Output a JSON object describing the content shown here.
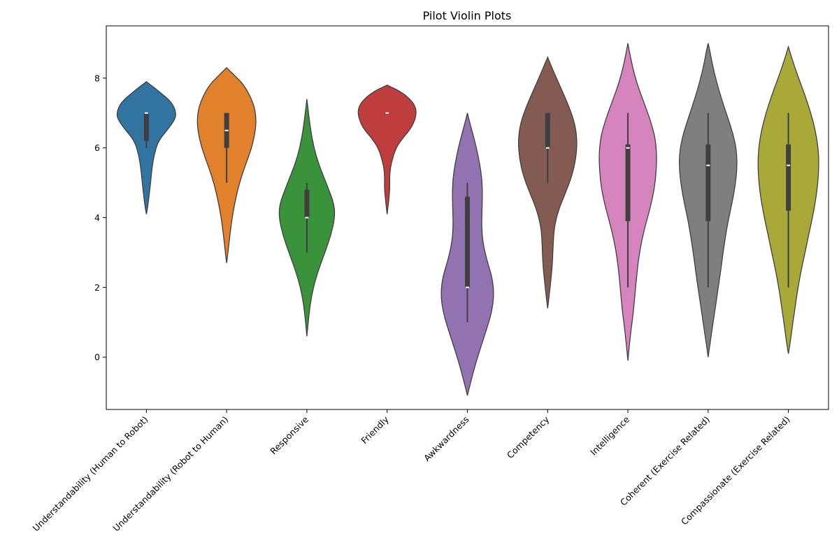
{
  "chart_data": {
    "type": "violin",
    "title": "Pilot Violin Plots",
    "xlabel": "",
    "ylabel": "",
    "ylim": [
      -1.5,
      9.5
    ],
    "y_ticks": [
      0,
      2,
      4,
      6,
      8
    ],
    "grid": false,
    "categories": [
      {
        "label": "Understandability (Human to Robot)",
        "color": "#3274a1",
        "range": [
          4.1,
          7.9
        ],
        "profile": [
          [
            4.1,
            0.0
          ],
          [
            4.3,
            0.04
          ],
          [
            4.6,
            0.08
          ],
          [
            5.0,
            0.13
          ],
          [
            5.4,
            0.17
          ],
          [
            5.8,
            0.24
          ],
          [
            6.2,
            0.37
          ],
          [
            6.5,
            0.64
          ],
          [
            6.8,
            0.88
          ],
          [
            7.0,
            0.93
          ],
          [
            7.3,
            0.8
          ],
          [
            7.6,
            0.42
          ],
          [
            7.9,
            0.0
          ]
        ],
        "box": [
          6.2,
          7.0
        ],
        "whisker": [
          6.0,
          7.0
        ],
        "median": 7.0
      },
      {
        "label": "Understandability (Robot to Human)",
        "color": "#e1812c",
        "range": [
          2.7,
          8.3
        ],
        "profile": [
          [
            2.7,
            0.0
          ],
          [
            3.0,
            0.04
          ],
          [
            3.5,
            0.1
          ],
          [
            4.0,
            0.17
          ],
          [
            4.5,
            0.27
          ],
          [
            5.0,
            0.4
          ],
          [
            5.5,
            0.58
          ],
          [
            6.0,
            0.78
          ],
          [
            6.5,
            0.9
          ],
          [
            6.9,
            0.92
          ],
          [
            7.3,
            0.83
          ],
          [
            7.8,
            0.55
          ],
          [
            8.1,
            0.22
          ],
          [
            8.3,
            0.0
          ]
        ],
        "box": [
          6.0,
          7.0
        ],
        "whisker": [
          5.0,
          7.0
        ],
        "median": 6.5
      },
      {
        "label": "Responsive",
        "color": "#3a923a",
        "range": [
          0.6,
          7.4
        ],
        "profile": [
          [
            0.6,
            0.0
          ],
          [
            1.0,
            0.04
          ],
          [
            1.5,
            0.1
          ],
          [
            2.0,
            0.2
          ],
          [
            2.5,
            0.36
          ],
          [
            3.0,
            0.56
          ],
          [
            3.5,
            0.75
          ],
          [
            4.0,
            0.87
          ],
          [
            4.4,
            0.85
          ],
          [
            5.0,
            0.6
          ],
          [
            5.5,
            0.38
          ],
          [
            6.0,
            0.22
          ],
          [
            6.5,
            0.12
          ],
          [
            7.0,
            0.05
          ],
          [
            7.4,
            0.0
          ]
        ],
        "box": [
          4.0,
          4.8
        ],
        "whisker": [
          3.0,
          5.0
        ],
        "median": 4.0
      },
      {
        "label": "Friendly",
        "color": "#c03d3e",
        "range": [
          4.1,
          7.8
        ],
        "profile": [
          [
            4.1,
            0.0
          ],
          [
            4.4,
            0.04
          ],
          [
            4.8,
            0.08
          ],
          [
            5.0,
            0.08
          ],
          [
            5.3,
            0.08
          ],
          [
            5.6,
            0.14
          ],
          [
            6.0,
            0.27
          ],
          [
            6.3,
            0.5
          ],
          [
            6.6,
            0.78
          ],
          [
            7.0,
            0.93
          ],
          [
            7.3,
            0.83
          ],
          [
            7.6,
            0.46
          ],
          [
            7.8,
            0.0
          ]
        ],
        "box": [
          7.0,
          7.0
        ],
        "whisker": [
          7.0,
          7.0
        ],
        "median": 7.0
      },
      {
        "label": "Awkwardness",
        "color": "#9372b2",
        "range": [
          -1.1,
          7.0
        ],
        "profile": [
          [
            -1.1,
            0.0
          ],
          [
            -0.8,
            0.08
          ],
          [
            -0.3,
            0.22
          ],
          [
            0.3,
            0.42
          ],
          [
            0.8,
            0.6
          ],
          [
            1.3,
            0.76
          ],
          [
            1.8,
            0.83
          ],
          [
            2.3,
            0.77
          ],
          [
            2.8,
            0.6
          ],
          [
            3.3,
            0.48
          ],
          [
            3.8,
            0.44
          ],
          [
            4.3,
            0.46
          ],
          [
            4.8,
            0.47
          ],
          [
            5.3,
            0.43
          ],
          [
            5.8,
            0.33
          ],
          [
            6.3,
            0.2
          ],
          [
            6.7,
            0.08
          ],
          [
            7.0,
            0.0
          ]
        ],
        "box": [
          2.0,
          4.6
        ],
        "whisker": [
          1.0,
          5.0
        ],
        "median": 2.0
      },
      {
        "label": "Competency",
        "color": "#845b53",
        "range": [
          1.4,
          8.6
        ],
        "profile": [
          [
            1.4,
            0.0
          ],
          [
            1.7,
            0.04
          ],
          [
            2.2,
            0.1
          ],
          [
            2.7,
            0.15
          ],
          [
            3.2,
            0.17
          ],
          [
            3.7,
            0.2
          ],
          [
            4.2,
            0.33
          ],
          [
            4.7,
            0.55
          ],
          [
            5.2,
            0.76
          ],
          [
            5.7,
            0.88
          ],
          [
            6.2,
            0.92
          ],
          [
            6.7,
            0.85
          ],
          [
            7.2,
            0.66
          ],
          [
            7.7,
            0.42
          ],
          [
            8.2,
            0.18
          ],
          [
            8.6,
            0.0
          ]
        ],
        "box": [
          6.0,
          7.0
        ],
        "whisker": [
          5.0,
          7.0
        ],
        "median": 6.0
      },
      {
        "label": "Intelligence",
        "color": "#d684bd",
        "range": [
          -0.1,
          9.0
        ],
        "profile": [
          [
            -0.1,
            0.0
          ],
          [
            0.3,
            0.04
          ],
          [
            0.8,
            0.1
          ],
          [
            1.3,
            0.17
          ],
          [
            1.8,
            0.22
          ],
          [
            2.3,
            0.27
          ],
          [
            2.8,
            0.33
          ],
          [
            3.3,
            0.42
          ],
          [
            3.8,
            0.55
          ],
          [
            4.3,
            0.7
          ],
          [
            4.8,
            0.82
          ],
          [
            5.3,
            0.88
          ],
          [
            5.8,
            0.9
          ],
          [
            6.3,
            0.85
          ],
          [
            6.8,
            0.7
          ],
          [
            7.3,
            0.5
          ],
          [
            7.8,
            0.3
          ],
          [
            8.3,
            0.15
          ],
          [
            8.7,
            0.06
          ],
          [
            9.0,
            0.0
          ]
        ],
        "box": [
          3.9,
          6.1
        ],
        "whisker": [
          2.0,
          7.0
        ],
        "median": 6.0
      },
      {
        "label": "Coherent (Exercise Related)",
        "color": "#7f7f7f",
        "range": [
          0.0,
          9.0
        ],
        "profile": [
          [
            0.0,
            0.0
          ],
          [
            0.4,
            0.06
          ],
          [
            0.9,
            0.14
          ],
          [
            1.4,
            0.22
          ],
          [
            1.9,
            0.3
          ],
          [
            2.4,
            0.38
          ],
          [
            2.9,
            0.45
          ],
          [
            3.4,
            0.53
          ],
          [
            3.9,
            0.62
          ],
          [
            4.4,
            0.74
          ],
          [
            4.9,
            0.84
          ],
          [
            5.4,
            0.9
          ],
          [
            5.9,
            0.89
          ],
          [
            6.4,
            0.78
          ],
          [
            6.9,
            0.6
          ],
          [
            7.4,
            0.42
          ],
          [
            7.9,
            0.26
          ],
          [
            8.4,
            0.13
          ],
          [
            8.8,
            0.05
          ],
          [
            9.0,
            0.0
          ]
        ],
        "box": [
          3.9,
          6.1
        ],
        "whisker": [
          2.0,
          7.0
        ],
        "median": 5.5
      },
      {
        "label": "Compassionate (Exercise Related)",
        "color": "#a9a93a",
        "range": [
          0.1,
          8.9
        ],
        "profile": [
          [
            0.1,
            0.0
          ],
          [
            0.5,
            0.07
          ],
          [
            1.0,
            0.14
          ],
          [
            1.5,
            0.22
          ],
          [
            2.0,
            0.3
          ],
          [
            2.5,
            0.4
          ],
          [
            3.0,
            0.52
          ],
          [
            3.5,
            0.63
          ],
          [
            4.0,
            0.75
          ],
          [
            4.5,
            0.85
          ],
          [
            5.0,
            0.92
          ],
          [
            5.5,
            0.95
          ],
          [
            6.0,
            0.93
          ],
          [
            6.5,
            0.84
          ],
          [
            7.0,
            0.7
          ],
          [
            7.5,
            0.52
          ],
          [
            8.0,
            0.32
          ],
          [
            8.5,
            0.13
          ],
          [
            8.9,
            0.0
          ]
        ],
        "box": [
          4.2,
          6.1
        ],
        "whisker": [
          2.0,
          7.0
        ],
        "median": 5.5
      }
    ]
  }
}
